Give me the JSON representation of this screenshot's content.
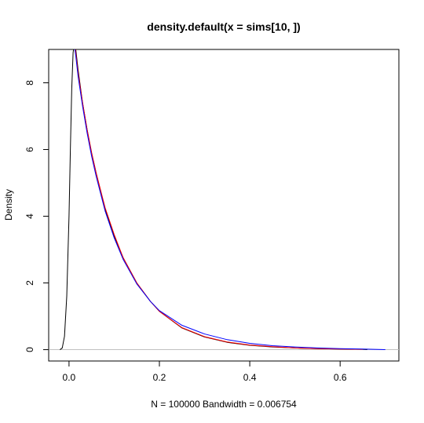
{
  "chart_data": {
    "type": "line",
    "title": "density.default(x = sims[10, ])",
    "xlabel": "N = 100000   Bandwidth = 0.006754",
    "ylabel": "Density",
    "xlim": [
      -0.045,
      0.73
    ],
    "ylim": [
      -0.34,
      9.0
    ],
    "xticks": [
      0.0,
      0.2,
      0.4,
      0.6
    ],
    "xtick_labels": [
      "0.0",
      "0.2",
      "0.4",
      "0.6"
    ],
    "yticks": [
      0,
      2,
      4,
      6,
      8
    ],
    "ytick_labels": [
      "0",
      "2",
      "4",
      "6",
      "8"
    ],
    "baseline": 0,
    "baseline_color": "#c0c0c0",
    "legend": "none",
    "grid": false,
    "series": [
      {
        "color": "#000000",
        "x": [
          -0.02,
          -0.015,
          -0.01,
          -0.005,
          0.0,
          0.003,
          0.006,
          0.009,
          0.012,
          0.015,
          0.02,
          0.03,
          0.04,
          0.05,
          0.06,
          0.08,
          0.1,
          0.12,
          0.15,
          0.18,
          0.2,
          0.25,
          0.3,
          0.35,
          0.4,
          0.45,
          0.5,
          0.55,
          0.6,
          0.65,
          0.66
        ],
        "y": [
          0.0,
          0.05,
          0.4,
          1.6,
          4.0,
          6.0,
          7.8,
          8.9,
          9.2,
          9.0,
          8.4,
          7.4,
          6.6,
          5.9,
          5.3,
          4.2,
          3.4,
          2.75,
          2.0,
          1.45,
          1.15,
          0.65,
          0.38,
          0.22,
          0.13,
          0.08,
          0.05,
          0.03,
          0.02,
          0.01,
          0.0
        ]
      },
      {
        "color": "#ff0000",
        "x": [
          0.012,
          0.015,
          0.02,
          0.03,
          0.04,
          0.05,
          0.06,
          0.08,
          0.1,
          0.12,
          0.15,
          0.18,
          0.2,
          0.25,
          0.3,
          0.35,
          0.4,
          0.45,
          0.5,
          0.55,
          0.6,
          0.65
        ],
        "y": [
          9.2,
          8.9,
          8.3,
          7.4,
          6.6,
          5.9,
          5.3,
          4.25,
          3.45,
          2.75,
          2.0,
          1.45,
          1.15,
          0.66,
          0.39,
          0.23,
          0.14,
          0.09,
          0.05,
          0.03,
          0.02,
          0.01
        ]
      },
      {
        "color": "#0000ff",
        "x": [
          0.012,
          0.015,
          0.02,
          0.03,
          0.04,
          0.05,
          0.06,
          0.08,
          0.1,
          0.12,
          0.15,
          0.18,
          0.2,
          0.25,
          0.3,
          0.35,
          0.4,
          0.45,
          0.5,
          0.55,
          0.6,
          0.65,
          0.7
        ],
        "y": [
          9.1,
          8.8,
          8.2,
          7.3,
          6.5,
          5.8,
          5.2,
          4.15,
          3.35,
          2.7,
          1.97,
          1.45,
          1.17,
          0.73,
          0.47,
          0.3,
          0.19,
          0.12,
          0.08,
          0.05,
          0.03,
          0.02,
          0.0
        ]
      }
    ]
  }
}
